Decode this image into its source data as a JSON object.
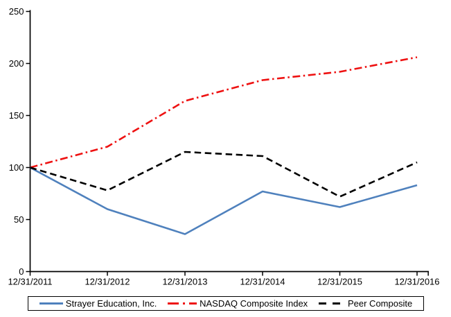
{
  "chart_data": {
    "type": "line",
    "title": "",
    "xlabel": "",
    "ylabel": "",
    "x_categories": [
      "12/31/2011",
      "12/31/2012",
      "12/31/2013",
      "12/31/2014",
      "12/31/2015",
      "12/31/2016"
    ],
    "y_ticks": [
      "0",
      "50",
      "100",
      "150",
      "200",
      "250"
    ],
    "ylim": [
      0,
      250
    ],
    "grid": false,
    "legend_position": "bottom",
    "axis_color": "#000000",
    "series": [
      {
        "name": "Strayer Education, Inc.",
        "color": "#4f81bd",
        "style": "solid",
        "values": [
          100,
          60,
          36,
          77,
          62,
          83
        ]
      },
      {
        "name": "NASDAQ Composite Index",
        "color": "#ee1111",
        "style": "dash-dot",
        "values": [
          100,
          120,
          164,
          184,
          192,
          206
        ]
      },
      {
        "name": "Peer Composite",
        "color": "#000000",
        "style": "dashed",
        "values": [
          100,
          78,
          115,
          111,
          72,
          105
        ]
      }
    ]
  }
}
